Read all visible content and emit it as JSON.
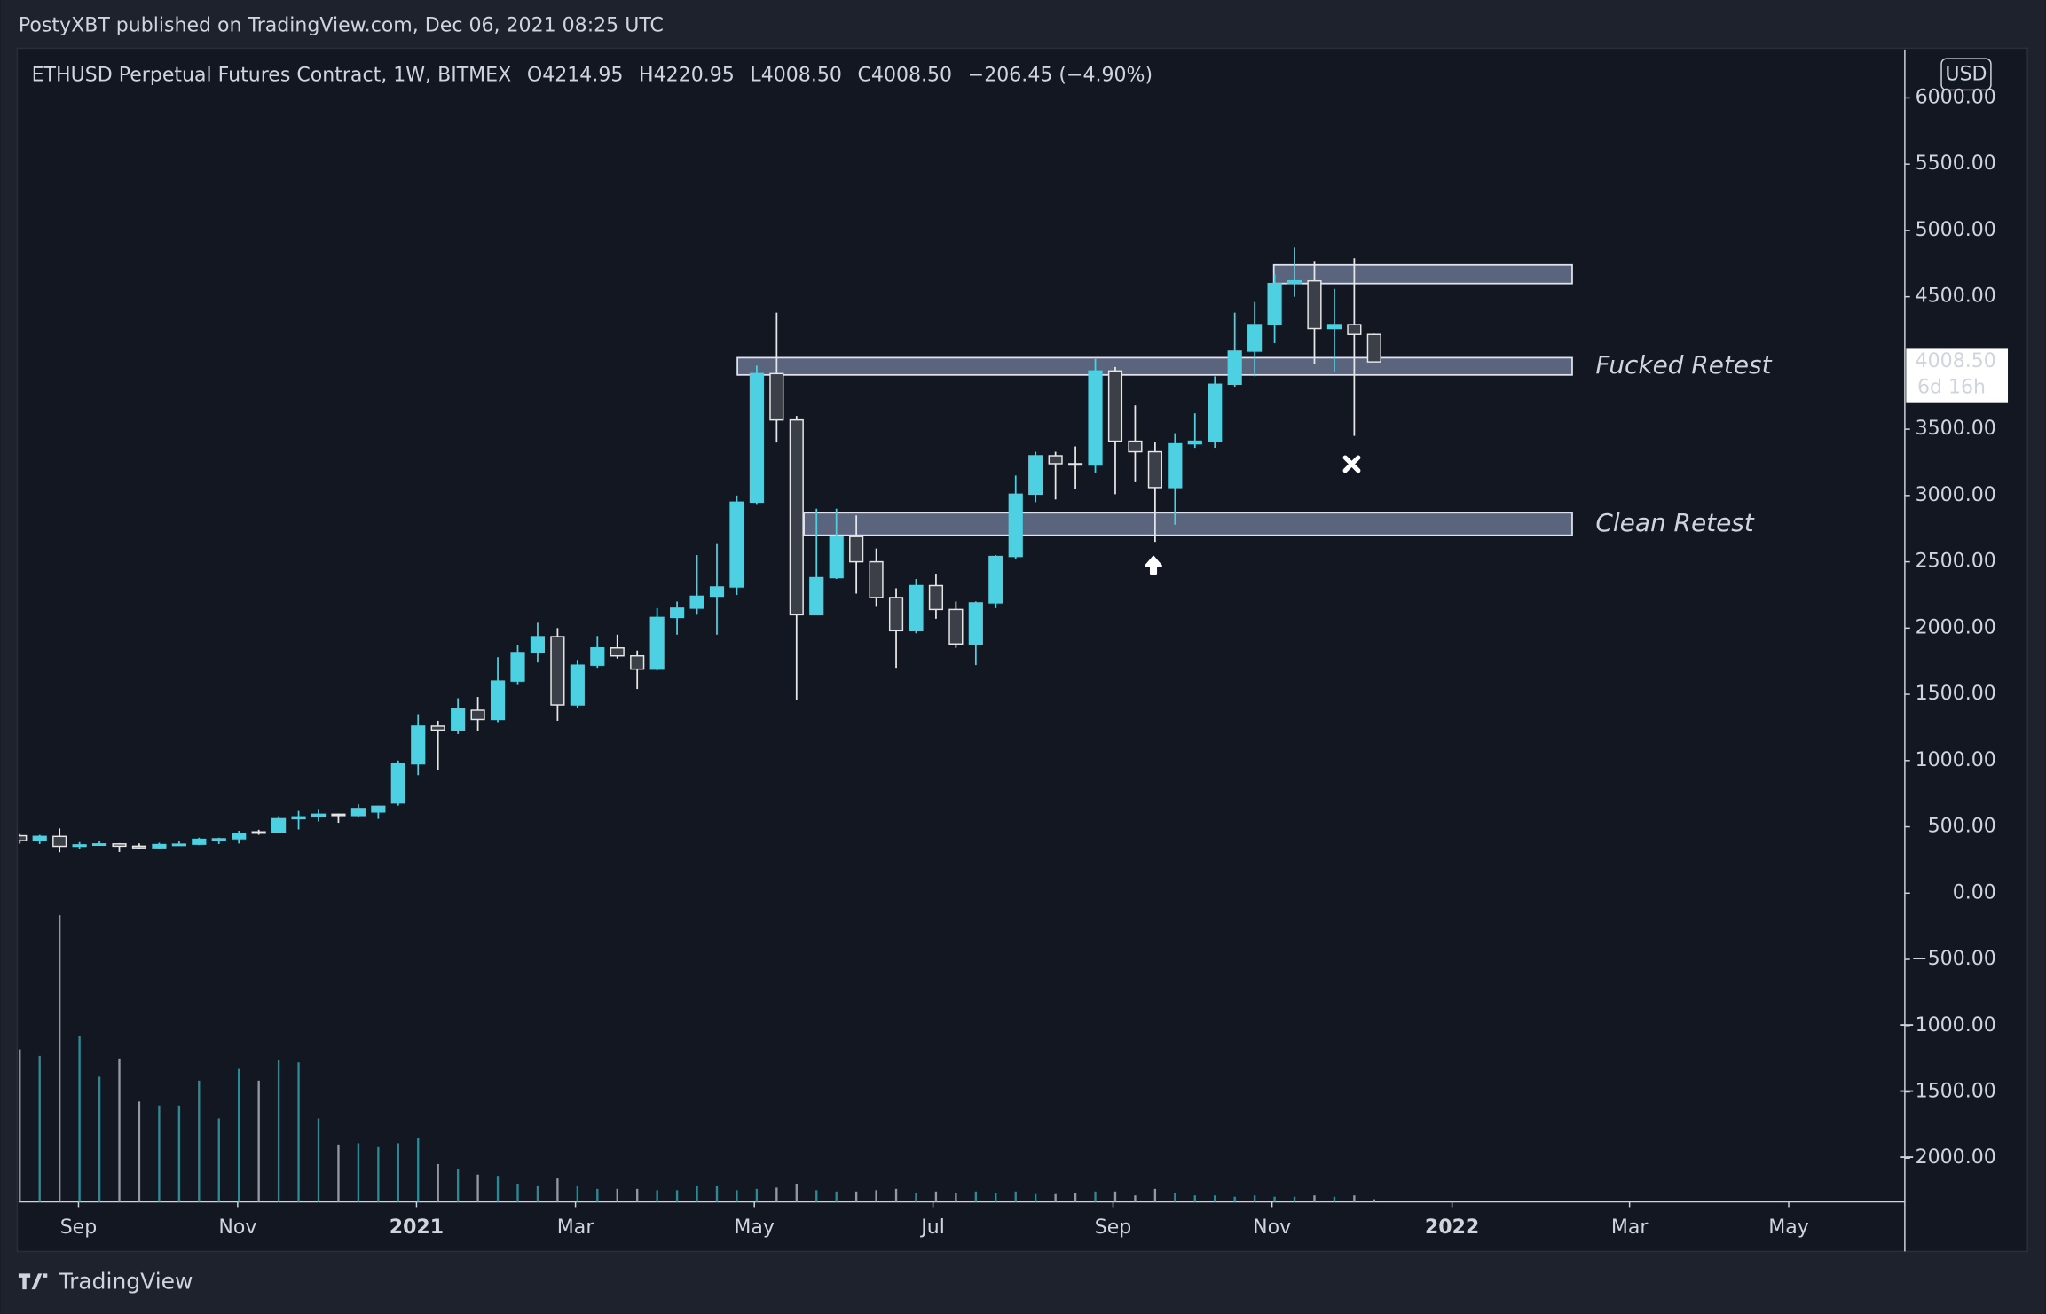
{
  "header": {
    "published": "PostyXBT published on TradingView.com, Dec 06, 2021 08:25 UTC",
    "brand": "TradingView"
  },
  "chart_data": {
    "type": "candlestick",
    "title": "ETHUSD Perpetual Futures Contract, 1W, BITMEX",
    "legend_values": [
      "O4214.95",
      "H4220.95",
      "L4008.50",
      "C4008.50",
      "−206.45 (−4.90%)"
    ],
    "currency": "USD",
    "up_color": "#4dd0e1",
    "down_color": "#3b3f47",
    "down_border": "#e6e6e6",
    "open": [
      433,
      396,
      428,
      353,
      364,
      371,
      354,
      342,
      366,
      369,
      396,
      410,
      462,
      455,
      561,
      575,
      595,
      585,
      612,
      680,
      975,
      1260,
      1230,
      1380,
      1310,
      1600,
      1815,
      1935,
      1420,
      1720,
      1850,
      1790,
      1690,
      2080,
      2150,
      2240,
      2310,
      2950,
      3920,
      3570,
      2100,
      2380,
      2690,
      2500,
      2230,
      1980,
      2320,
      2140,
      1880,
      2190,
      2540,
      3010,
      3300,
      3240,
      3230,
      3940,
      3410,
      3330,
      3060,
      3390,
      3410,
      3840,
      4090,
      4290,
      4600,
      4620,
      4260,
      4290,
      4214.95
    ],
    "high": [
      446,
      439,
      488,
      385,
      395,
      377,
      375,
      380,
      392,
      418,
      418,
      470,
      478,
      580,
      620,
      635,
      600,
      670,
      660,
      1000,
      1350,
      1300,
      1470,
      1480,
      1780,
      1870,
      2040,
      2000,
      1760,
      1940,
      1950,
      1830,
      2150,
      2200,
      2550,
      2640,
      3000,
      3980,
      4380,
      3600,
      2900,
      2900,
      2850,
      2600,
      2300,
      2370,
      2410,
      2200,
      2200,
      2550,
      3150,
      3330,
      3330,
      3370,
      4030,
      3970,
      3680,
      3400,
      3470,
      3620,
      3900,
      4380,
      4460,
      4670,
      4870,
      4770,
      4560,
      4790,
      4220.95
    ],
    "low": [
      373,
      371,
      308,
      330,
      360,
      310,
      335,
      332,
      362,
      362,
      370,
      374,
      440,
      450,
      480,
      540,
      530,
      570,
      560,
      660,
      890,
      930,
      1200,
      1220,
      1290,
      1570,
      1740,
      1300,
      1400,
      1700,
      1770,
      1540,
      1680,
      1950,
      2100,
      1950,
      2250,
      2930,
      3400,
      1460,
      2100,
      2370,
      2260,
      2160,
      1700,
      1960,
      2070,
      1850,
      1720,
      2150,
      2520,
      2950,
      2970,
      3050,
      3170,
      3010,
      3100,
      2650,
      2780,
      3360,
      3360,
      3820,
      3900,
      4150,
      4500,
      3990,
      3930,
      3450,
      4008.5
    ],
    "close": [
      396,
      428,
      353,
      364,
      371,
      354,
      342,
      366,
      369,
      406,
      410,
      449,
      455,
      561,
      575,
      595,
      585,
      638,
      655,
      975,
      1260,
      1230,
      1390,
      1310,
      1600,
      1815,
      1935,
      1420,
      1720,
      1850,
      1790,
      1690,
      2080,
      2150,
      2240,
      2310,
      2950,
      3920,
      3570,
      2100,
      2380,
      2690,
      2500,
      2230,
      1980,
      2320,
      2140,
      1880,
      2190,
      2540,
      3010,
      3300,
      3240,
      3230,
      3940,
      3410,
      3330,
      3060,
      3390,
      3410,
      3840,
      4090,
      4290,
      4600,
      4620,
      4260,
      4290,
      4215,
      4008.5
    ],
    "volume": [
      117,
      112,
      220,
      127,
      96,
      110,
      77,
      74,
      74,
      93,
      64,
      102,
      93,
      109,
      107,
      64,
      44,
      45,
      42,
      45,
      49,
      29,
      25,
      21,
      20,
      14,
      12,
      18,
      12,
      10,
      10,
      10,
      9,
      9,
      12,
      12,
      9,
      10,
      11,
      14,
      9,
      8,
      8,
      9,
      10,
      7,
      8,
      7,
      8,
      7,
      8,
      6,
      6,
      7,
      8,
      8,
      5,
      10,
      7,
      5,
      5,
      4,
      5,
      4,
      4,
      5,
      4,
      5,
      2
    ],
    "volume_lim": [
      0,
      884
    ],
    "xlim": [
      -0.06,
      94.64
    ],
    "xticks": [
      {
        "value": 2.95,
        "label": "Sep"
      },
      {
        "value": 10.94,
        "label": "Nov"
      },
      {
        "value": 19.92,
        "label": "2021",
        "bold": true
      },
      {
        "value": 27.9,
        "label": "Mar"
      },
      {
        "value": 36.88,
        "label": "May"
      },
      {
        "value": 45.85,
        "label": "Jul"
      },
      {
        "value": 54.89,
        "label": "Sep"
      },
      {
        "value": 62.87,
        "label": "Nov"
      },
      {
        "value": 71.91,
        "label": "2022",
        "bold": true
      },
      {
        "value": 80.82,
        "label": "Mar"
      },
      {
        "value": 88.81,
        "label": "May"
      }
    ],
    "ylim": [
      -2330,
      6365
    ],
    "yticks": [
      {
        "value": 6000,
        "label": "6000.00"
      },
      {
        "value": 5500,
        "label": "5500.00"
      },
      {
        "value": 5000,
        "label": "5000.00"
      },
      {
        "value": 4500,
        "label": "4500.00"
      },
      {
        "value": 3500,
        "label": "3500.00"
      },
      {
        "value": 3000,
        "label": "3000.00"
      },
      {
        "value": 2500,
        "label": "2500.00"
      },
      {
        "value": 2000,
        "label": "2000.00"
      },
      {
        "value": 1500,
        "label": "1500.00"
      },
      {
        "value": 1000,
        "label": "1000.00"
      },
      {
        "value": 500,
        "label": "500.00"
      },
      {
        "value": 0,
        "label": "0.00"
      },
      {
        "value": -500,
        "label": "−500.00"
      },
      {
        "value": -1000,
        "label": "−1000.00"
      },
      {
        "value": -1500,
        "label": "−1500.00"
      },
      {
        "value": -2000,
        "label": "−2000.00"
      }
    ],
    "last_price": {
      "value": 4008.5,
      "label": "4008.50",
      "countdown": "6d 16h"
    },
    "zones": [
      {
        "from_index": 36.03,
        "to_index": 77.94,
        "low": 3910,
        "high": 4040,
        "label": "Fucked Retest"
      },
      {
        "from_index": 39.37,
        "to_index": 77.94,
        "low": 2700,
        "high": 2870,
        "label": "Clean Retest"
      },
      {
        "from_index": 62.96,
        "to_index": 77.94,
        "low": 4600,
        "high": 4740
      }
    ]
  }
}
